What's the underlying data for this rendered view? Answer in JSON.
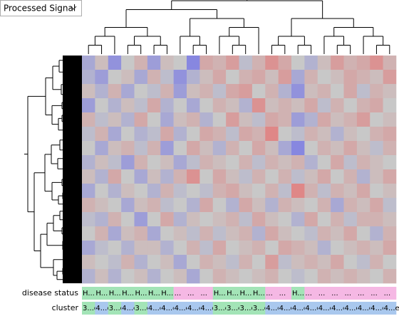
{
  "dropdown": {
    "label": "Processed Signal"
  },
  "heatmap": {
    "colors": {
      "low": "#5c5cf0",
      "mid": "#c8c8c8",
      "high": "#ee5c5c"
    },
    "values": [
      [
        -0.3,
        0.1,
        -0.5,
        0,
        0.2,
        -0.4,
        0.1,
        0,
        -0.6,
        0.3,
        0.2,
        0.4,
        -0.1,
        0.2,
        0.5,
        0.3,
        0,
        -0.2,
        0.1,
        0.4,
        0.2,
        0.3,
        0.5,
        0.2
      ],
      [
        -0.2,
        -0.4,
        0,
        0.1,
        -0.3,
        0.2,
        -0.1,
        -0.5,
        -0.2,
        0.1,
        0.3,
        0,
        0.2,
        0.3,
        0.1,
        0.4,
        -0.3,
        0.2,
        0,
        0.1,
        0.3,
        0.2,
        0.1,
        0.4
      ],
      [
        0.1,
        -0.2,
        0.2,
        -0.3,
        0,
        -0.1,
        0.2,
        -0.4,
        0.1,
        0.2,
        -0.1,
        0.3,
        0.4,
        0,
        0.2,
        -0.2,
        -0.5,
        0.1,
        0.2,
        0,
        0.3,
        -0.1,
        0.2,
        0.1
      ],
      [
        -0.4,
        0,
        -0.2,
        0.1,
        -0.1,
        0.3,
        -0.2,
        0,
        -0.3,
        0,
        0.2,
        0.1,
        -0.2,
        0.5,
        0.1,
        0.2,
        0.1,
        0.3,
        -0.1,
        0.2,
        0,
        0.2,
        0.3,
        0
      ],
      [
        0.2,
        -0.1,
        0.1,
        -0.2,
        0.3,
        0,
        -0.3,
        0.1,
        0.2,
        -0.2,
        0,
        0.4,
        0.1,
        -0.1,
        0.3,
        0.2,
        -0.4,
        -0.2,
        0.3,
        0.1,
        0.2,
        0.4,
        0,
        0.1
      ],
      [
        -0.1,
        0.2,
        -0.3,
        0,
        -0.2,
        -0.1,
        0.3,
        -0.2,
        0,
        0.3,
        0.2,
        -0.1,
        0.3,
        0.2,
        0.6,
        0,
        -0.1,
        0.2,
        0.1,
        -0.2,
        0.1,
        0,
        0.2,
        0.3
      ],
      [
        0,
        -0.3,
        0.1,
        0.2,
        -0.1,
        0.2,
        -0.4,
        0,
        0.3,
        0.1,
        -0.2,
        0.2,
        0,
        0.3,
        0.1,
        -0.3,
        -0.6,
        0,
        0.2,
        0.1,
        0.3,
        0.1,
        -0.1,
        0.2
      ],
      [
        -0.2,
        0.1,
        -0.1,
        -0.4,
        0.2,
        0,
        0.1,
        -0.3,
        -0.1,
        0.2,
        0.1,
        0,
        0.2,
        -0.1,
        0.2,
        0.1,
        0.2,
        -0.2,
        0,
        0.3,
        -0.1,
        0.2,
        0.1,
        0
      ],
      [
        0.1,
        -0.2,
        0.3,
        0,
        -0.3,
        0.1,
        -0.2,
        0.2,
        0.5,
        0,
        0.3,
        0.1,
        -0.1,
        0.2,
        0,
        0.2,
        -0.1,
        0.1,
        0.3,
        0,
        0.2,
        -0.2,
        0.1,
        0.3
      ],
      [
        -0.3,
        0,
        -0.2,
        0.1,
        0,
        -0.2,
        0.2,
        -0.1,
        0,
        -0.1,
        0.2,
        0.3,
        0.1,
        0,
        0.2,
        -0.1,
        0.6,
        0.2,
        -0.1,
        0.2,
        0.1,
        0.3,
        0,
        0.1
      ],
      [
        0.2,
        0.1,
        0,
        -0.3,
        0.1,
        0.2,
        -0.1,
        0,
        -0.2,
        0.3,
        0,
        -0.2,
        0.3,
        0.1,
        -0.2,
        0.2,
        0.1,
        0,
        0.2,
        -0.3,
        0.2,
        0.1,
        0.3,
        -0.1
      ],
      [
        -0.1,
        -0.2,
        0.2,
        0,
        -0.4,
        0,
        0.3,
        -0.2,
        0.1,
        0,
        0.1,
        0.2,
        -0.1,
        0.3,
        0.1,
        0,
        -0.2,
        0.3,
        0,
        0.2,
        -0.1,
        0.2,
        0.2,
        0.1
      ],
      [
        0,
        0.2,
        -0.3,
        0.1,
        0.2,
        -0.3,
        0,
        0.1,
        -0.1,
        0.2,
        -0.1,
        0.1,
        0.2,
        -0.2,
        0.3,
        0.1,
        0,
        -0.1,
        0.2,
        0.1,
        0.3,
        0,
        -0.2,
        0.2
      ],
      [
        -0.3,
        -0.1,
        0,
        -0.2,
        0.1,
        0.1,
        -0.2,
        0,
        0.2,
        -0.1,
        0.3,
        0,
        0.1,
        0.2,
        0,
        0.3,
        0.2,
        0.1,
        -0.2,
        0,
        0.1,
        0.2,
        0.1,
        0.3
      ],
      [
        0.1,
        0,
        -0.1,
        0.2,
        -0.2,
        0,
        0.1,
        -0.3,
        0,
        0.2,
        0.1,
        -0.1,
        0.2,
        0,
        0.4,
        -0.1,
        0.1,
        0.2,
        0.1,
        0.3,
        0,
        -0.1,
        0.2,
        0
      ],
      [
        -0.2,
        0.1,
        -0.2,
        0,
        0.1,
        -0.2,
        0,
        0.1,
        -0.3,
        0,
        0.2,
        0.1,
        0,
        0.1,
        0.2,
        0,
        -0.1,
        0,
        0.2,
        0.1,
        0.2,
        0.1,
        0,
        0.2
      ]
    ]
  },
  "annotations": [
    {
      "label": "disease status",
      "cells": [
        "H...I",
        "H...I",
        "H...I",
        "H...I",
        "H...I",
        "H...I",
        "H...I",
        "...",
        "...",
        "...",
        "H...I",
        "H...I",
        "H...I",
        "H...I",
        "...",
        "...",
        "H...I",
        "...",
        "...",
        "...",
        "...",
        "...",
        "...",
        "..."
      ],
      "colors": [
        "#a3e4b7",
        "#a3e4b7",
        "#a3e4b7",
        "#a3e4b7",
        "#a3e4b7",
        "#a3e4b7",
        "#a3e4b7",
        "#f5b8e4",
        "#f5b8e4",
        "#f5b8e4",
        "#a3e4b7",
        "#a3e4b7",
        "#a3e4b7",
        "#a3e4b7",
        "#f5b8e4",
        "#f5b8e4",
        "#a3e4b7",
        "#f5b8e4",
        "#f5b8e4",
        "#f5b8e4",
        "#f5b8e4",
        "#f5b8e4",
        "#f5b8e4",
        "#f5b8e4"
      ]
    },
    {
      "label": "cluster",
      "cells": [
        "3...e",
        "4...e",
        "3...e",
        "4...e",
        "3...e",
        "4...e",
        "4...e",
        "4...e",
        "4...e",
        "4...e",
        "3...e",
        "3...e",
        "3...e",
        "3...e",
        "4...e",
        "4...e",
        "4...e",
        "4...e",
        "4...e",
        "4...e",
        "4...e",
        "4...e",
        "4...e",
        "4...e"
      ],
      "colors": [
        "#a3e4b7",
        "#a9c8ee",
        "#a3e4b7",
        "#a9c8ee",
        "#a3e4b7",
        "#a9c8ee",
        "#a9c8ee",
        "#a9c8ee",
        "#a9c8ee",
        "#a9c8ee",
        "#a3e4b7",
        "#a3e4b7",
        "#a3e4b7",
        "#a3e4b7",
        "#a9c8ee",
        "#a9c8ee",
        "#a9c8ee",
        "#a9c8ee",
        "#a9c8ee",
        "#a9c8ee",
        "#a9c8ee",
        "#a9c8ee",
        "#a9c8ee",
        "#a9c8ee"
      ]
    }
  ]
}
